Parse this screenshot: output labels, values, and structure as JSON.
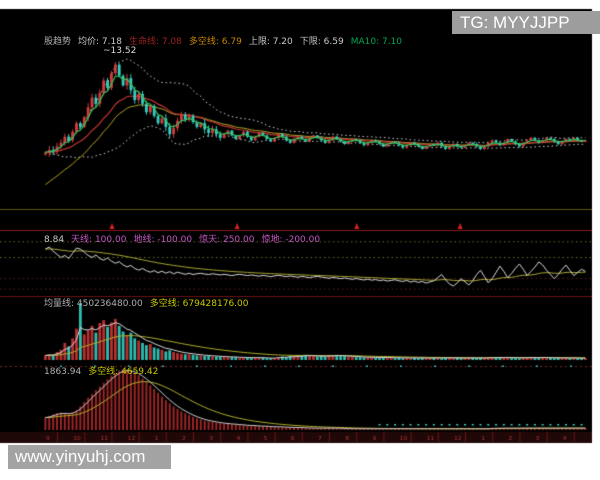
{
  "watermarks": {
    "top": "TG: MYYJJPP",
    "bottom": "www.yinyuhj.com"
  },
  "main_panel": {
    "peak_label": "~13.52"
  },
  "colors": {
    "background": "#000000",
    "up_candle": "#d23c3c",
    "down_candle": "#35cfc3",
    "ma_green": "#35c05a",
    "ma_red": "#c03434",
    "band_white": "#cfcfcf",
    "line_yellow": "#b0a020",
    "separator_red": "#8a1818",
    "marker_red": "#d42222",
    "axis_strip": "#200808",
    "text": {
      "white": "#c8c8c8",
      "gray": "#b0b0b0",
      "darkred": "#9c2020",
      "orange": "#c88400",
      "green": "#00a550",
      "magenta": "#c455c4",
      "yellow": "#c8c800"
    }
  },
  "headers": {
    "main": [
      {
        "text": "股趋势",
        "color": "gray"
      },
      {
        "text": "均价: 7.18",
        "color": "white"
      },
      {
        "text": "生命线: 7.08",
        "color": "darkred"
      },
      {
        "text": "多空线: 6.79",
        "color": "orange"
      },
      {
        "text": "上限: 7.20",
        "color": "white"
      },
      {
        "text": "下限: 6.59",
        "color": "white"
      },
      {
        "text": "MA10: 7.10",
        "color": "green"
      }
    ],
    "oscillator": [
      {
        "text": "8.84",
        "color": "white"
      },
      {
        "text": "天线: 100.00",
        "color": "magenta"
      },
      {
        "text": "地线: -100.00",
        "color": "magenta"
      },
      {
        "text": "惊天: 250.00",
        "color": "magenta"
      },
      {
        "text": "惊地: -200.00",
        "color": "magenta"
      }
    ],
    "volume": [
      {
        "text": "均量线: 450236480.00",
        "color": "gray"
      },
      {
        "text": "多空线: 679428176.00",
        "color": "yellow"
      }
    ],
    "holdings": [
      {
        "text": "1863.94",
        "color": "gray"
      },
      {
        "text": "多空线: 4659.42",
        "color": "yellow"
      }
    ]
  },
  "markers": {
    "fractions": [
      0.125,
      0.355,
      0.575,
      0.765
    ]
  },
  "axis": {
    "month_labels": [
      "9",
      "10",
      "11",
      "12",
      "1",
      "2",
      "3",
      "4",
      "5",
      "6",
      "7",
      "8",
      "9",
      "10",
      "11",
      "12",
      "1",
      "2",
      "3",
      "4"
    ]
  },
  "chart_data": {
    "type": "candlestick-multi-panel",
    "title": "股趋势 stock trend indicator chart",
    "panel_names": [
      "price-candles",
      "oscillator",
      "volume",
      "holdings-histogram"
    ],
    "peak_value": 13.52,
    "main_reference_lines": {
      "upper": 7.2,
      "lower": 6.59,
      "ma10": 7.1,
      "avg_price": 7.18,
      "bull_bear": 6.79
    },
    "oscillator_reference_lines": {
      "sky": 100.0,
      "ground": -100.0,
      "shock_sky": 250.0,
      "shock_ground": -200.0
    },
    "close": [
      6.1,
      6.3,
      6.2,
      6.6,
      6.9,
      7.4,
      7.1,
      7.8,
      8.5,
      8.2,
      9.0,
      9.8,
      10.6,
      10.1,
      11.0,
      12.0,
      11.4,
      12.6,
      13.3,
      12.4,
      11.6,
      12.2,
      11.2,
      10.4,
      10.9,
      10.1,
      9.4,
      9.9,
      9.1,
      8.5,
      8.9,
      8.2,
      7.6,
      8.1,
      8.7,
      9.2,
      8.8,
      9.1,
      8.6,
      8.2,
      8.5,
      8.0,
      7.7,
      8.0,
      7.6,
      7.3,
      7.6,
      7.9,
      7.5,
      7.2,
      7.5,
      7.8,
      7.4,
      7.1,
      7.4,
      7.7,
      7.5,
      7.2,
      7.0,
      7.3,
      7.6,
      7.4,
      7.1,
      6.9,
      7.2,
      7.4,
      7.2,
      7.0,
      7.3,
      7.5,
      7.3,
      7.1,
      6.9,
      7.1,
      7.4,
      7.2,
      7.0,
      6.8,
      7.0,
      7.2,
      7.1,
      6.9,
      6.7,
      6.9,
      7.1,
      7.0,
      6.8,
      6.6,
      6.8,
      7.0,
      6.9,
      6.7,
      6.5,
      6.7,
      6.9,
      6.8,
      6.6,
      6.4,
      6.6,
      6.8,
      6.7,
      6.9,
      6.6,
      6.4,
      6.6,
      6.8,
      6.6,
      6.5,
      6.7,
      6.9,
      6.8,
      6.6,
      6.4,
      6.6,
      6.9,
      7.1,
      6.9,
      6.7,
      6.9,
      7.2,
      7.0,
      6.8,
      6.6,
      6.9,
      7.1,
      7.3,
      7.1,
      6.9,
      7.1,
      7.3,
      7.2,
      7.0,
      6.8,
      7.0,
      7.2,
      7.1,
      7.3,
      7.1,
      7.0,
      7.1
    ],
    "volume": [
      8,
      10,
      9,
      14,
      18,
      30,
      24,
      38,
      55,
      100,
      45,
      52,
      60,
      48,
      65,
      70,
      58,
      66,
      72,
      60,
      50,
      44,
      48,
      38,
      34,
      30,
      26,
      28,
      22,
      20,
      18,
      15,
      17,
      14,
      12,
      11,
      10,
      10,
      9,
      8,
      8,
      7,
      7,
      6,
      6,
      6,
      5,
      5,
      5,
      5,
      4,
      4,
      4,
      4,
      4,
      4,
      4,
      3,
      3,
      3,
      5,
      6,
      5,
      7,
      6,
      8,
      7,
      9,
      8,
      7,
      6,
      7,
      6,
      8,
      7,
      9,
      8,
      7,
      6,
      6,
      5,
      5,
      4,
      4,
      5,
      4,
      4,
      5,
      4,
      4,
      3,
      4,
      3,
      4,
      3,
      4,
      3,
      4,
      3,
      3,
      4,
      4,
      3,
      4,
      4,
      3,
      4,
      3,
      3,
      4,
      4,
      3,
      4,
      3,
      4,
      5,
      4,
      5,
      4,
      5,
      4,
      4,
      3,
      4,
      4,
      5,
      4,
      4,
      5,
      4,
      4,
      3,
      4,
      3,
      4,
      3,
      4,
      3,
      3,
      3
    ],
    "oscillator": [
      180,
      200,
      160,
      130,
      100,
      120,
      90,
      140,
      190,
      180,
      150,
      120,
      100,
      125,
      90,
      75,
      95,
      65,
      45,
      60,
      30,
      10,
      25,
      -5,
      -20,
      -5,
      -25,
      -40,
      -25,
      -45,
      -30,
      -50,
      -35,
      -55,
      -40,
      -50,
      -60,
      -50,
      -62,
      -55,
      -50,
      -58,
      -62,
      -55,
      -60,
      -66,
      -60,
      -66,
      -72,
      -65,
      -60,
      -66,
      -72,
      -66,
      -72,
      -78,
      -70,
      -76,
      -82,
      -75,
      -70,
      -76,
      -82,
      -76,
      -82,
      -88,
      -80,
      -86,
      -92,
      -85,
      -80,
      -86,
      -92,
      -98,
      -90,
      -95,
      -102,
      -95,
      -102,
      -108,
      -100,
      -108,
      -114,
      -106,
      -116,
      -110,
      -120,
      -114,
      -124,
      -118,
      -112,
      -122,
      -128,
      -118,
      -134,
      -124,
      -138,
      -128,
      -144,
      -132,
      -122,
      -92,
      -62,
      -112,
      -152,
      -172,
      -142,
      -102,
      -132,
      -162,
      -122,
      -62,
      -22,
      -82,
      -142,
      -102,
      -42,
      18,
      -32,
      -92,
      -52,
      -2,
      38,
      -12,
      -72,
      -32,
      8,
      58,
      28,
      -22,
      -62,
      -102,
      -62,
      -12,
      28,
      -22,
      -72,
      -42,
      -12,
      -32
    ],
    "holdings": [
      20,
      22,
      25,
      27,
      28,
      27,
      26,
      28,
      32,
      38,
      45,
      52,
      58,
      64,
      70,
      76,
      82,
      88,
      92,
      96,
      98,
      97,
      95,
      92,
      88,
      83,
      78,
      72,
      66,
      60,
      54,
      48,
      43,
      38,
      34,
      30,
      27,
      24,
      21,
      19,
      17,
      15,
      14,
      13,
      12,
      11,
      10,
      10,
      9,
      9,
      8,
      8,
      7,
      7,
      7,
      6,
      6,
      6,
      5,
      5,
      5,
      5,
      4,
      4,
      4,
      4,
      4,
      3,
      3,
      3,
      3,
      3,
      3,
      3,
      3,
      3,
      3,
      2,
      2,
      2,
      2,
      2,
      2,
      2,
      2,
      2,
      2,
      2,
      2,
      2,
      2,
      2,
      2,
      2,
      2,
      2,
      2,
      2,
      2,
      2,
      2,
      2,
      2,
      2,
      2,
      2,
      2,
      2,
      2,
      2,
      2,
      2,
      2,
      2,
      2,
      3,
      3,
      3,
      3,
      3,
      3,
      3,
      3,
      3,
      3,
      3,
      3,
      3,
      3,
      3,
      3,
      3,
      3,
      3,
      3,
      3,
      3,
      3,
      3,
      3
    ]
  }
}
